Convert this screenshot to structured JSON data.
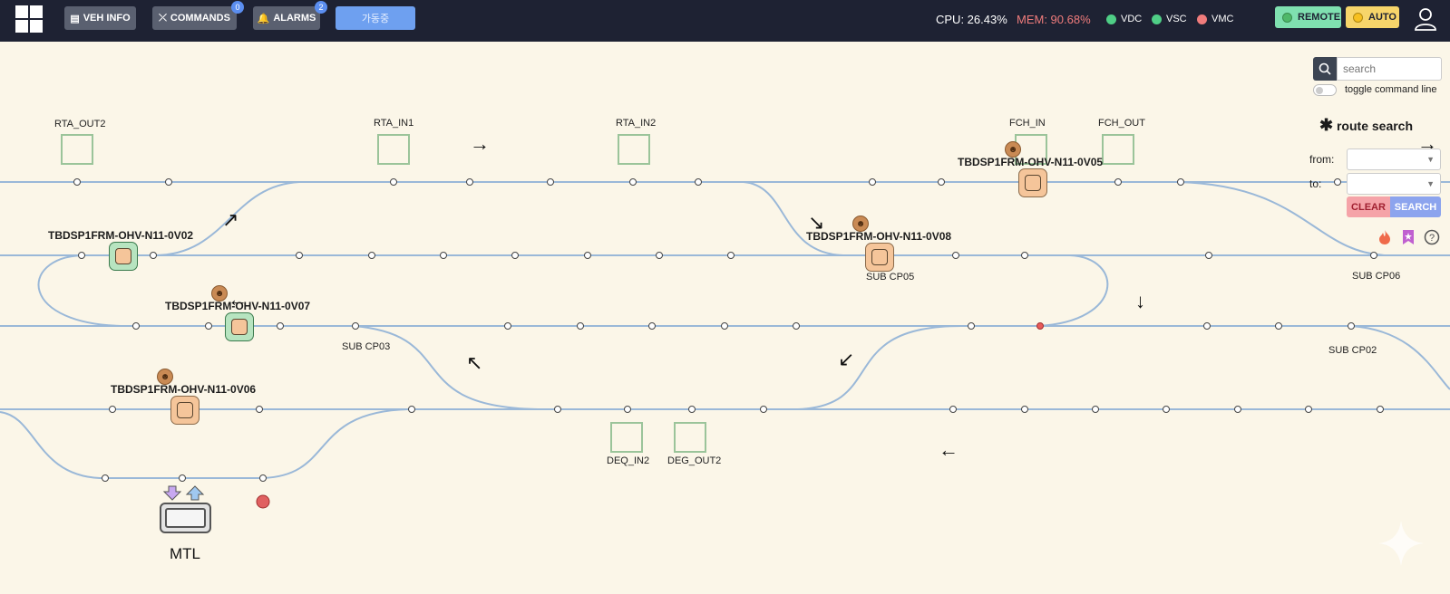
{
  "header": {
    "veh_info": "VEH INFO",
    "commands": "COMMANDS",
    "commands_count": "0",
    "alarms": "ALARMS",
    "alarms_count": "2",
    "korean_button": "가동중",
    "cpu": "CPU: 26.43%",
    "mem": "MEM: 90.68%",
    "legend": [
      {
        "label": "VDC",
        "color": "#4fce86"
      },
      {
        "label": "VSC",
        "color": "#4fce86"
      },
      {
        "label": "VMC",
        "color": "#f07c7c"
      }
    ],
    "remote": "REMOTE",
    "auto": "AUTO"
  },
  "stations": {
    "rta_out2": "RTA_OUT2",
    "rta_in1": "RTA_IN1",
    "rta_in2": "RTA_IN2",
    "fch_in": "FCH_IN",
    "fch_out": "FCH_OUT",
    "deq_in2": "DEQ_IN2",
    "deg_out2": "DEG_OUT2"
  },
  "sub_cps": {
    "cp03": "SUB CP03",
    "cp05": "SUB CP05",
    "cp06": "SUB CP06",
    "cp02": "SUB CP02"
  },
  "vehicles": {
    "v02": "TBDSP1FRM-OHV-N11-0V02",
    "v05": "TBDSP1FRM-OHV-N11-0V05",
    "v08": "TBDSP1FRM-OHV-N11-0V08",
    "v07": "TBDSP1FRM-OHV-N11-0V07",
    "v06": "TBDSP1FRM-OHV-N11-0V06"
  },
  "right_panel": {
    "search_placeholder": "search",
    "toggle_label": "toggle command line",
    "route_search_title": "route search",
    "from_label": "from:",
    "to_label": "to:",
    "clear": "CLEAR",
    "search": "SEARCH"
  },
  "mtl": "MTL"
}
